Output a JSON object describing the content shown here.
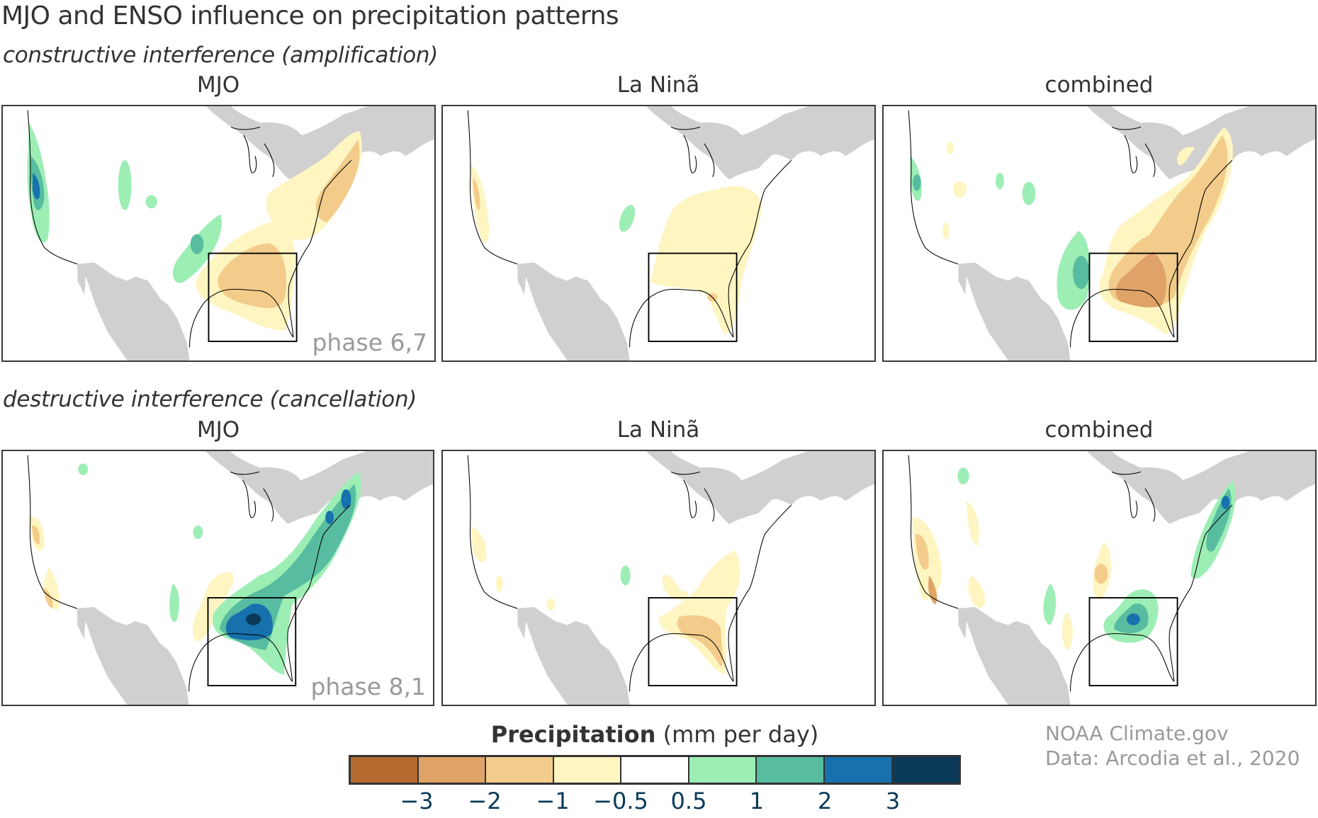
{
  "title": "MJO and ENSO influence on precipitation patterns",
  "sections": [
    {
      "heading": "constructive interference (amplification)",
      "panels": [
        {
          "title": "MJO",
          "label": "phase 6,7"
        },
        {
          "title": "La Ninã",
          "label": ""
        },
        {
          "title": "combined",
          "label": ""
        }
      ]
    },
    {
      "heading": "destructive interference (cancellation)",
      "panels": [
        {
          "title": "MJO",
          "label": "phase 8,1"
        },
        {
          "title": "La Ninã",
          "label": ""
        },
        {
          "title": "combined",
          "label": ""
        }
      ]
    }
  ],
  "colorbar": {
    "title_bold": "Precipitation",
    "title_rest": " (mm per day)",
    "colors": [
      "#b46a2f",
      "#e0a367",
      "#f3cc8b",
      "#fef5c1",
      "#ffffff",
      "#9deeb5",
      "#58bda0",
      "#1671ad",
      "#0a3a58"
    ],
    "ticks": [
      "−3",
      "−2",
      "−1",
      "−0.5",
      "0.5",
      "1",
      "2",
      "3"
    ]
  },
  "credits": {
    "line1": "NOAA Climate.gov",
    "line2": "Data: Arcodia et al., 2020"
  },
  "colors": {
    "land_outside": "#d0d0d0",
    "frame": "#3a3a3a",
    "text": "#333333",
    "phase_label": "#9a9a9a",
    "tick_label": "#0b3a58"
  }
}
